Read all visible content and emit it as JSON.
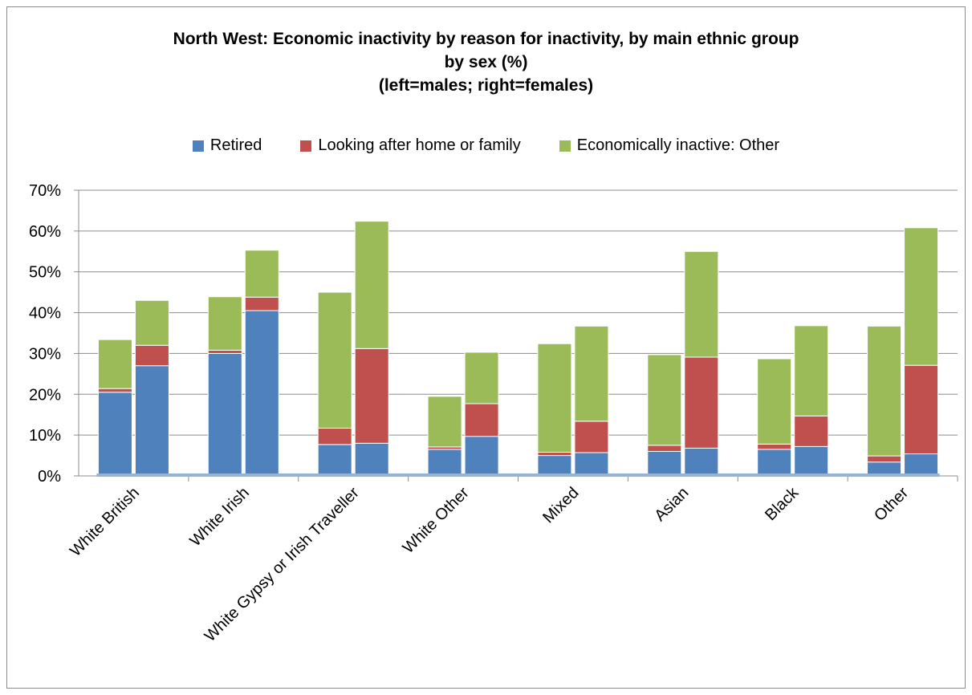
{
  "chart_data": {
    "type": "bar",
    "stacked": true,
    "title_lines": [
      "North West: Economic inactivity by reason for inactivity, by main ethnic group",
      "by sex (%)",
      "(left=males; right=females)"
    ],
    "xlabel": "",
    "ylabel": "",
    "ylim": [
      0,
      70
    ],
    "yticks": [
      "0%",
      "10%",
      "20%",
      "30%",
      "40%",
      "50%",
      "60%",
      "70%"
    ],
    "grid": true,
    "legend_placement": "top",
    "categories": [
      "White British",
      "White Irish",
      "White Gypsy or Irish Traveller",
      "White Other",
      "Mixed",
      "Asian",
      "Black",
      "Other"
    ],
    "bars_per_category": [
      "males",
      "females"
    ],
    "series": [
      {
        "name": "Retired",
        "color": "#4f81bd",
        "values": [
          [
            20.5,
            27.0
          ],
          [
            30.0,
            40.5
          ],
          [
            7.7,
            8.0
          ],
          [
            6.5,
            9.7
          ],
          [
            5.0,
            5.7
          ],
          [
            6.0,
            6.8
          ],
          [
            6.5,
            7.2
          ],
          [
            3.4,
            5.4
          ]
        ]
      },
      {
        "name": "Looking after home or family",
        "color": "#c0504d",
        "values": [
          [
            0.9,
            5.0
          ],
          [
            0.8,
            3.3
          ],
          [
            4.0,
            23.2
          ],
          [
            0.6,
            8.0
          ],
          [
            0.8,
            7.7
          ],
          [
            1.5,
            22.3
          ],
          [
            1.3,
            7.5
          ],
          [
            1.5,
            21.7
          ]
        ]
      },
      {
        "name": "Economically inactive: Other",
        "color": "#9bbb59",
        "values": [
          [
            12.0,
            11.0
          ],
          [
            13.1,
            11.5
          ],
          [
            33.3,
            31.2
          ],
          [
            12.4,
            12.6
          ],
          [
            26.6,
            23.3
          ],
          [
            22.2,
            25.9
          ],
          [
            20.9,
            22.1
          ],
          [
            31.8,
            33.7
          ]
        ]
      }
    ]
  }
}
